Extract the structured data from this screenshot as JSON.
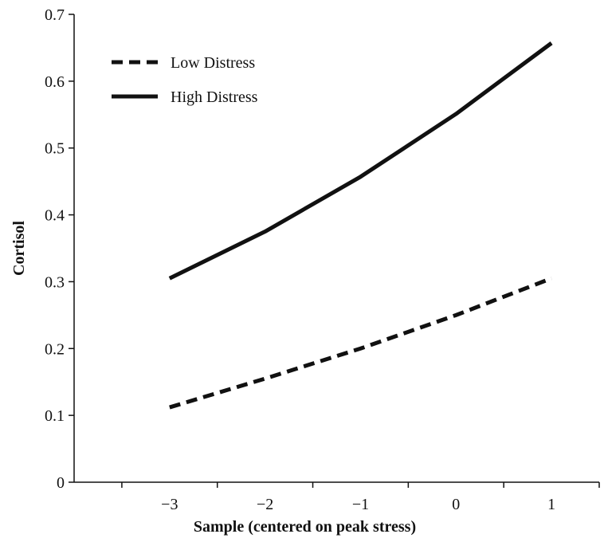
{
  "chart_data": {
    "type": "line",
    "xlabel": "Sample (centered on peak stress)",
    "ylabel": "Cortisol",
    "x": [
      -3,
      -2,
      -1,
      0,
      1
    ],
    "x_tick_labels": [
      "−3",
      "−2",
      "−1",
      "0",
      "1"
    ],
    "xlim": [
      -4,
      1.5
    ],
    "ylim": [
      0,
      0.7
    ],
    "y_ticks": [
      0,
      0.1,
      0.2,
      0.3,
      0.4,
      0.5,
      0.6,
      0.7
    ],
    "y_tick_labels": [
      "0",
      "0.1",
      "0.2",
      "0.3",
      "0.4",
      "0.5",
      "0.6",
      "0.7"
    ],
    "grid": false,
    "legend_position": "top-left",
    "series": [
      {
        "name": "Low Distress",
        "style": "dashed",
        "color": "#111111",
        "values": [
          0.112,
          0.155,
          0.2,
          0.25,
          0.305
        ]
      },
      {
        "name": "High Distress",
        "style": "solid",
        "color": "#111111",
        "values": [
          0.305,
          0.375,
          0.457,
          0.551,
          0.657
        ]
      }
    ]
  }
}
